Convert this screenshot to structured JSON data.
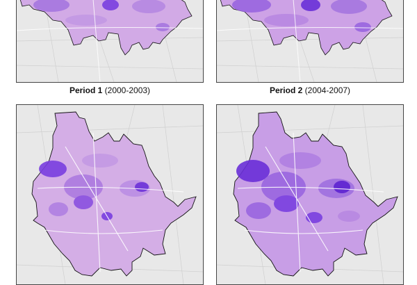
{
  "figure": {
    "panels": [
      {
        "label": "Period 1",
        "range": "(2000-2003)"
      },
      {
        "label": "Period 2",
        "range": "(2004-2007)"
      },
      {
        "label": "",
        "range": ""
      },
      {
        "label": "",
        "range": ""
      }
    ]
  },
  "colors": {
    "background": "#e6e6e6",
    "roads": "#ffffff",
    "fill_light": "#d4aee6",
    "fill_mid": "#ad7ae0",
    "fill_dark": "#7a3fe0",
    "fill_darkest": "#5a1fd0",
    "outline": "#111111"
  }
}
